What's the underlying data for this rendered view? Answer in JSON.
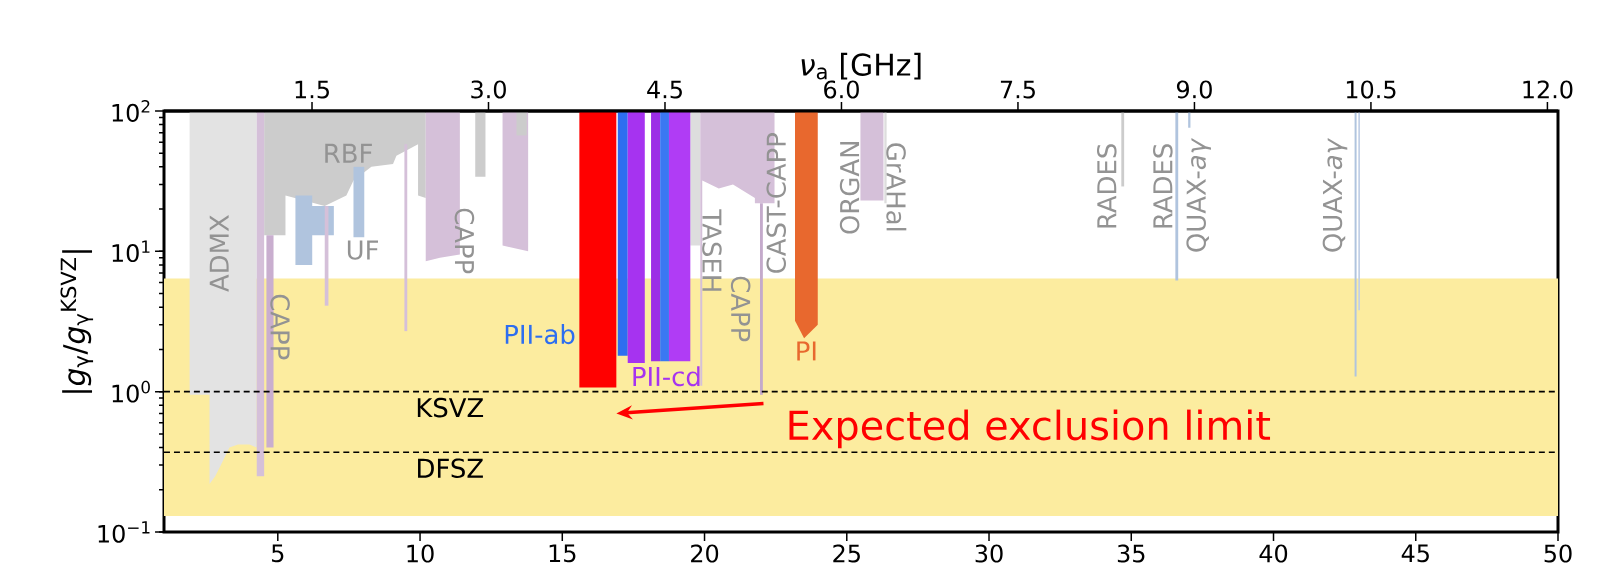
{
  "chart_data": {
    "type": "area",
    "x2label": "*ν*$_{a}$ [GHz]",
    "ylabel": "|*g*$_{γ}$/*g*$_{γ}$$^{KSVZ}$|",
    "xlim": [
      1,
      50
    ],
    "xticks": [
      5,
      10,
      15,
      20,
      25,
      30,
      35,
      40,
      45,
      50
    ],
    "x2lim": [
      0.242,
      12.09
    ],
    "x2ticks": [
      1.5,
      {
        "value": 3,
        "label": "3.0"
      },
      4.5,
      {
        "value": 6,
        "label": "6.0"
      },
      7.5,
      {
        "value": 9,
        "label": "9.0"
      },
      10.5,
      {
        "value": 12,
        "label": "12.0"
      }
    ],
    "ylim": [
      0.1,
      100
    ],
    "log": "y",
    "yticks": [
      {
        "value": 0.1,
        "label": "10$^{−1}$"
      },
      {
        "value": 1,
        "label": "10$^{0}$"
      },
      {
        "value": 10,
        "label": "10$^{1}$"
      },
      {
        "value": 100,
        "label": "10$^{2}$"
      }
    ],
    "grid": false,
    "bands": [
      {
        "axis": "y",
        "from": 0.13,
        "to": 6.4,
        "color": "#fcec9f"
      }
    ],
    "ref_lines": [
      {
        "axis": "y",
        "value": 1,
        "label": "KSVZ",
        "color": "#000000",
        "line_style": "dashed"
      },
      {
        "axis": "y",
        "value": 0.37,
        "label": "DFSZ",
        "color": "#000000",
        "line_style": "dashed"
      }
    ],
    "series": [
      {
        "color": "#e3e3e3",
        "x": [
          1.9,
          2.6,
          2.6,
          2.8,
          3.0,
          3.3,
          3.6,
          4.0,
          4.26
        ],
        "values": [
          null,
          null,
          null,
          null,
          null,
          null,
          null,
          null,
          null
        ],
        "lower": [
          0.95,
          0.95,
          0.22,
          0.25,
          0.3,
          0.4,
          0.42,
          0.42,
          0.4
        ],
        "upper": [
          100,
          100,
          100,
          100,
          100,
          100,
          100,
          100,
          100
        ]
      },
      {
        "color": "#cccccc",
        "x": [
          4.52,
          5.27,
          5.27,
          6.65,
          7.41,
          7.66,
          8.29,
          9.05,
          9.17,
          9.93,
          9.93,
          10.2
        ],
        "values": [
          null,
          null,
          null,
          null,
          null,
          null,
          null,
          null,
          null,
          null,
          null,
          null
        ],
        "lower": [
          13,
          13,
          25,
          21,
          25,
          32,
          40,
          42,
          48,
          58,
          25,
          24
        ],
        "upper": [
          100,
          100,
          100,
          100,
          100,
          100,
          100,
          100,
          100,
          100,
          100,
          100
        ]
      },
      {
        "color": "#cccccc",
        "x": [
          11.94,
          12.3
        ],
        "values": [
          null,
          null
        ],
        "lower": [
          34,
          34
        ],
        "upper": [
          100,
          100
        ]
      },
      {
        "color": "#b0c4de",
        "x": [
          5.62,
          6.21,
          6.21,
          6.97
        ],
        "values": [
          null,
          null,
          null,
          null
        ],
        "lower": [
          8,
          8,
          13,
          13
        ],
        "upper": [
          25,
          25,
          21,
          21
        ]
      },
      {
        "color": "#b0c4de",
        "x": [
          7.66,
          8.04
        ],
        "values": [
          null,
          null
        ],
        "lower": [
          12.6,
          12.6
        ],
        "upper": [
          40,
          40
        ]
      },
      {
        "color": "#d5c0d9",
        "x": [
          4.26,
          4.52
        ],
        "values": [
          null,
          null
        ],
        "lower": [
          0.25,
          0.25
        ],
        "upper": [
          100,
          100
        ]
      },
      {
        "color": "#c9aecf",
        "x": [
          4.6,
          4.85
        ],
        "values": [
          null,
          null
        ],
        "lower": [
          0.4,
          0.4
        ],
        "upper": [
          13,
          13
        ]
      },
      {
        "color": "#d5c0d9",
        "x": [
          6.65,
          6.78
        ],
        "values": [
          null,
          null
        ],
        "lower": [
          4.1,
          4.1
        ],
        "upper": [
          21,
          21
        ]
      },
      {
        "color": "#d5c0d9",
        "x": [
          9.45,
          9.55
        ],
        "values": [
          null,
          null
        ],
        "lower": [
          2.7,
          2.7
        ],
        "upper": [
          58,
          58
        ]
      },
      {
        "color": "#d5c0d9",
        "x": [
          10.2,
          10.7,
          11.4
        ],
        "values": [
          null,
          null,
          null
        ],
        "lower": [
          8.5,
          9,
          9.5
        ],
        "upper": [
          100,
          100,
          100
        ]
      },
      {
        "color": "#d5c0d9",
        "x": [
          12.9,
          13.8
        ],
        "values": [
          null,
          null
        ],
        "lower": [
          11,
          10
        ],
        "upper": [
          100,
          100
        ]
      },
      {
        "color": "#cccccc",
        "x": [
          13.39,
          13.75
        ],
        "values": [
          null,
          null
        ],
        "lower": [
          67,
          67
        ],
        "upper": [
          100,
          100
        ]
      },
      {
        "color": "#dddddd",
        "x": [
          19.5,
          19.85
        ],
        "values": [
          null,
          null
        ],
        "lower": [
          11,
          11
        ],
        "upper": [
          100,
          100
        ]
      },
      {
        "color": "#d5c0d9",
        "x": [
          19.85,
          19.92,
          19.92,
          20.5,
          21.0,
          21.77,
          21.77,
          22.46
        ],
        "values": [
          null,
          null,
          null,
          null,
          null,
          null,
          null,
          null
        ],
        "lower": [
          1.1,
          1.1,
          32,
          28,
          30,
          24,
          22,
          22
        ],
        "upper": [
          100,
          100,
          100,
          100,
          100,
          100,
          100,
          100
        ]
      },
      {
        "color": "#c4aacb",
        "x": [
          21.95,
          22.05
        ],
        "values": [
          null,
          null
        ],
        "lower": [
          0.95,
          0.95
        ],
        "upper": [
          22,
          22
        ]
      },
      {
        "color": "#d5c0d9",
        "x": [
          25.48,
          26.29
        ],
        "values": [
          null,
          null
        ],
        "lower": [
          23,
          23
        ],
        "upper": [
          100,
          100
        ]
      },
      {
        "color": "#dddddd",
        "x": [
          26.32,
          26.4
        ],
        "values": [
          null,
          null
        ],
        "lower": [
          22,
          22
        ],
        "upper": [
          100,
          100
        ]
      },
      {
        "color": "#cccccc",
        "x": [
          34.65,
          34.75
        ],
        "values": [
          null,
          null
        ],
        "lower": [
          29,
          29
        ],
        "upper": [
          100,
          100
        ]
      },
      {
        "color": "#b0c4de",
        "x": [
          36.55,
          36.65
        ],
        "values": [
          null,
          null
        ],
        "lower": [
          6.2,
          6.2
        ],
        "upper": [
          100,
          100
        ]
      },
      {
        "color": "#b0c4de",
        "x": [
          37.0,
          37.08
        ],
        "values": [
          null,
          null
        ],
        "lower": [
          76,
          76
        ],
        "upper": [
          100,
          100
        ]
      },
      {
        "color": "#b0c4de",
        "x": [
          42.85,
          42.92
        ],
        "values": [
          null,
          null
        ],
        "lower": [
          1.28,
          1.28
        ],
        "upper": [
          100,
          100
        ]
      },
      {
        "color": "#c2d0e6",
        "x": [
          42.98,
          43.04
        ],
        "values": [
          null,
          null
        ],
        "lower": [
          3.8,
          3.8
        ],
        "upper": [
          100,
          100
        ]
      },
      {
        "name": "PII-ab",
        "color": "#2d6ef0",
        "x": [
          16.95,
          17.3
        ],
        "values": [
          null,
          null
        ],
        "lower": [
          1.8,
          1.8
        ],
        "upper": [
          100,
          100
        ]
      },
      {
        "name": "PII-cd",
        "color": "#a633f0",
        "x": [
          17.3,
          17.9
        ],
        "values": [
          null,
          null
        ],
        "lower": [
          1.6,
          1.6
        ],
        "upper": [
          100,
          100
        ]
      },
      {
        "color": "#9c2ee6",
        "x": [
          18.12,
          18.44
        ],
        "values": [
          null,
          null
        ],
        "lower": [
          1.65,
          1.65
        ],
        "upper": [
          100,
          100
        ]
      },
      {
        "color": "#3a78f2",
        "x": [
          18.44,
          18.75
        ],
        "values": [
          null,
          null
        ],
        "lower": [
          1.65,
          1.65
        ],
        "upper": [
          100,
          100
        ]
      },
      {
        "color": "#b03cf5",
        "x": [
          18.75,
          19.5
        ],
        "values": [
          null,
          null
        ],
        "lower": [
          1.65,
          1.65
        ],
        "upper": [
          100,
          100
        ]
      },
      {
        "name": "PI",
        "color": "#e8682e",
        "x": [
          23.18,
          23.5,
          23.98
        ],
        "values": [
          null,
          null,
          null
        ],
        "lower": [
          3.2,
          2.4,
          3.0
        ],
        "upper": [
          100,
          100,
          100
        ]
      },
      {
        "color": "#ff0000",
        "x": [
          15.6,
          16.9
        ],
        "values": [
          null,
          null
        ],
        "lower": [
          1.07,
          1.07
        ],
        "upper": [
          100,
          100
        ]
      }
    ],
    "annotations": [
      "ADMX",
      "CAPP",
      "RBF",
      "UF",
      "CAPP",
      "TASEH",
      "CAPP",
      "CAST-CAPP",
      "ORGAN",
      "GrAHal",
      "RADES",
      "RADES",
      "QUAX-*aγ*",
      "QUAX-*aγ*",
      "Expected exclusion limit"
    ]
  }
}
